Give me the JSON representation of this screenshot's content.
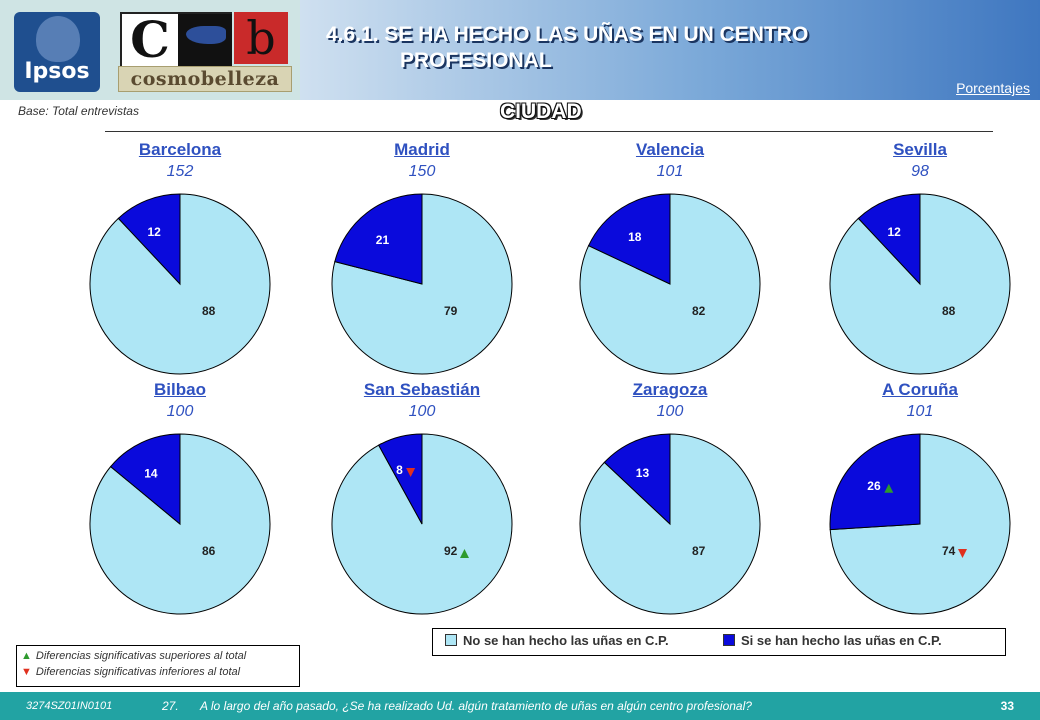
{
  "header": {
    "title_line1": "4.6.1. SE HA HECHO LAS UÑAS EN UN CENTRO",
    "title_line2": "PROFESIONAL",
    "units_label": "Porcentajes",
    "base_label": "Base: Total entrevistas",
    "section_title": "CIUDAD",
    "logo_left_text": "Ipsos",
    "logo_right_text": "cosmobelleza",
    "logo_right_letters": [
      "C",
      "b"
    ]
  },
  "colors": {
    "no_slice": "#aee6f5",
    "si_slice": "#0a0adc",
    "up_arrow": "#2e9a2e",
    "down_arrow": "#e0301e",
    "city_text": "#2f51c0",
    "footer_bg": "#22a3a3"
  },
  "chart_data": {
    "type": "pie",
    "charts": [
      {
        "city": "Barcelona",
        "base": "152",
        "no": 88,
        "si": 12,
        "no_sig": "",
        "si_sig": ""
      },
      {
        "city": "Madrid",
        "base": "150",
        "no": 79,
        "si": 21,
        "no_sig": "",
        "si_sig": ""
      },
      {
        "city": "Valencia",
        "base": "101",
        "no": 82,
        "si": 18,
        "no_sig": "",
        "si_sig": ""
      },
      {
        "city": "Sevilla",
        "base": "98",
        "no": 88,
        "si": 12,
        "no_sig": "",
        "si_sig": ""
      },
      {
        "city": "Bilbao",
        "base": "100",
        "no": 86,
        "si": 14,
        "no_sig": "",
        "si_sig": ""
      },
      {
        "city": "San Sebastián",
        "base": "100",
        "no": 92,
        "si": 8,
        "no_sig": "up",
        "si_sig": "down"
      },
      {
        "city": "Zaragoza",
        "base": "100",
        "no": 87,
        "si": 13,
        "no_sig": "",
        "si_sig": ""
      },
      {
        "city": "A Coruña",
        "base": "101",
        "no": 74,
        "si": 26,
        "no_sig": "down",
        "si_sig": "up"
      }
    ],
    "series": [
      {
        "name": "No se han hecho las uñas en C.P.",
        "key": "no"
      },
      {
        "name": "Si se han hecho las uñas en C.P.",
        "key": "si"
      }
    ]
  },
  "legend": {
    "no_label": "No se han hecho las uñas en C.P.",
    "si_label": "Si se han hecho las uñas en C.P."
  },
  "significance": {
    "up_label": "Diferencias significativas superiores al total",
    "down_label": "Diferencias significativas inferiores al total",
    "up_symbol": "▲",
    "down_symbol": "▼"
  },
  "footer": {
    "code": "3274SZ01IN0101",
    "question_number": "27.",
    "question_text": "A lo largo del año pasado, ¿Se ha realizado Ud.  algún tratamiento de uñas en algún centro profesional?",
    "page": "33"
  }
}
